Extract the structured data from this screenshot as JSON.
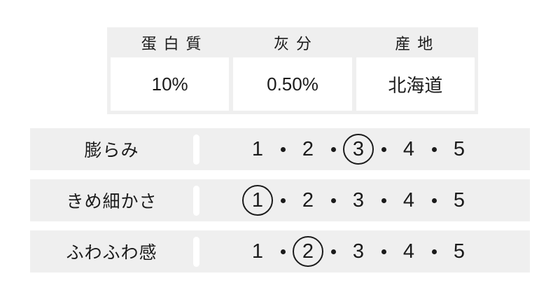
{
  "spec_table": {
    "columns": [
      {
        "header": "蛋白質",
        "value": "10%"
      },
      {
        "header": "灰分",
        "value": "0.50%"
      },
      {
        "header": "産地",
        "value": "北海道"
      }
    ]
  },
  "ratings": {
    "scale_min": 1,
    "scale_max": 5,
    "rows": [
      {
        "label": "膨らみ",
        "selected": 3,
        "scale": [
          1,
          2,
          3,
          4,
          5
        ]
      },
      {
        "label": "きめ細かさ",
        "selected": 1,
        "scale": [
          1,
          2,
          3,
          4,
          5
        ]
      },
      {
        "label": "ふわふわ感",
        "selected": 2,
        "scale": [
          1,
          2,
          3,
          4,
          5
        ]
      }
    ]
  },
  "colors": {
    "panel_bg": "#efefef",
    "cell_bg": "#ffffff",
    "text": "#1b1b1b"
  }
}
